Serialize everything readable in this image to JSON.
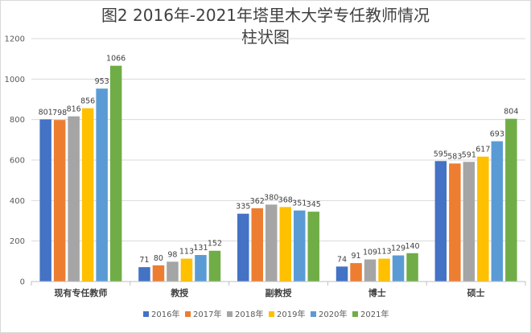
{
  "chart_data": {
    "type": "bar",
    "title": "图2 2016年-2021年塔里木大学专任教师情况",
    "subtitle": "柱状图",
    "categories": [
      "现有专任教师",
      "教授",
      "副教授",
      "博士",
      "硕士"
    ],
    "series": [
      {
        "name": "2016年",
        "color": "#4472C4",
        "values": [
          801,
          71,
          335,
          74,
          595
        ]
      },
      {
        "name": "2017年",
        "color": "#ED7D31",
        "values": [
          798,
          80,
          362,
          91,
          583
        ]
      },
      {
        "name": "2018年",
        "color": "#A5A5A5",
        "values": [
          816,
          98,
          380,
          109,
          591
        ]
      },
      {
        "name": "2019年",
        "color": "#FFC000",
        "values": [
          856,
          113,
          368,
          113,
          617
        ]
      },
      {
        "name": "2020年",
        "color": "#5B9BD5",
        "values": [
          953,
          131,
          351,
          129,
          693
        ]
      },
      {
        "name": "2021年",
        "color": "#70AD47",
        "values": [
          1066,
          152,
          345,
          140,
          804
        ]
      }
    ],
    "ylim": [
      0,
      1200
    ],
    "yticks": [
      0,
      200,
      400,
      600,
      800,
      1000,
      1200
    ],
    "grid": true,
    "legend": "bottom",
    "xlabel": "",
    "ylabel": ""
  }
}
